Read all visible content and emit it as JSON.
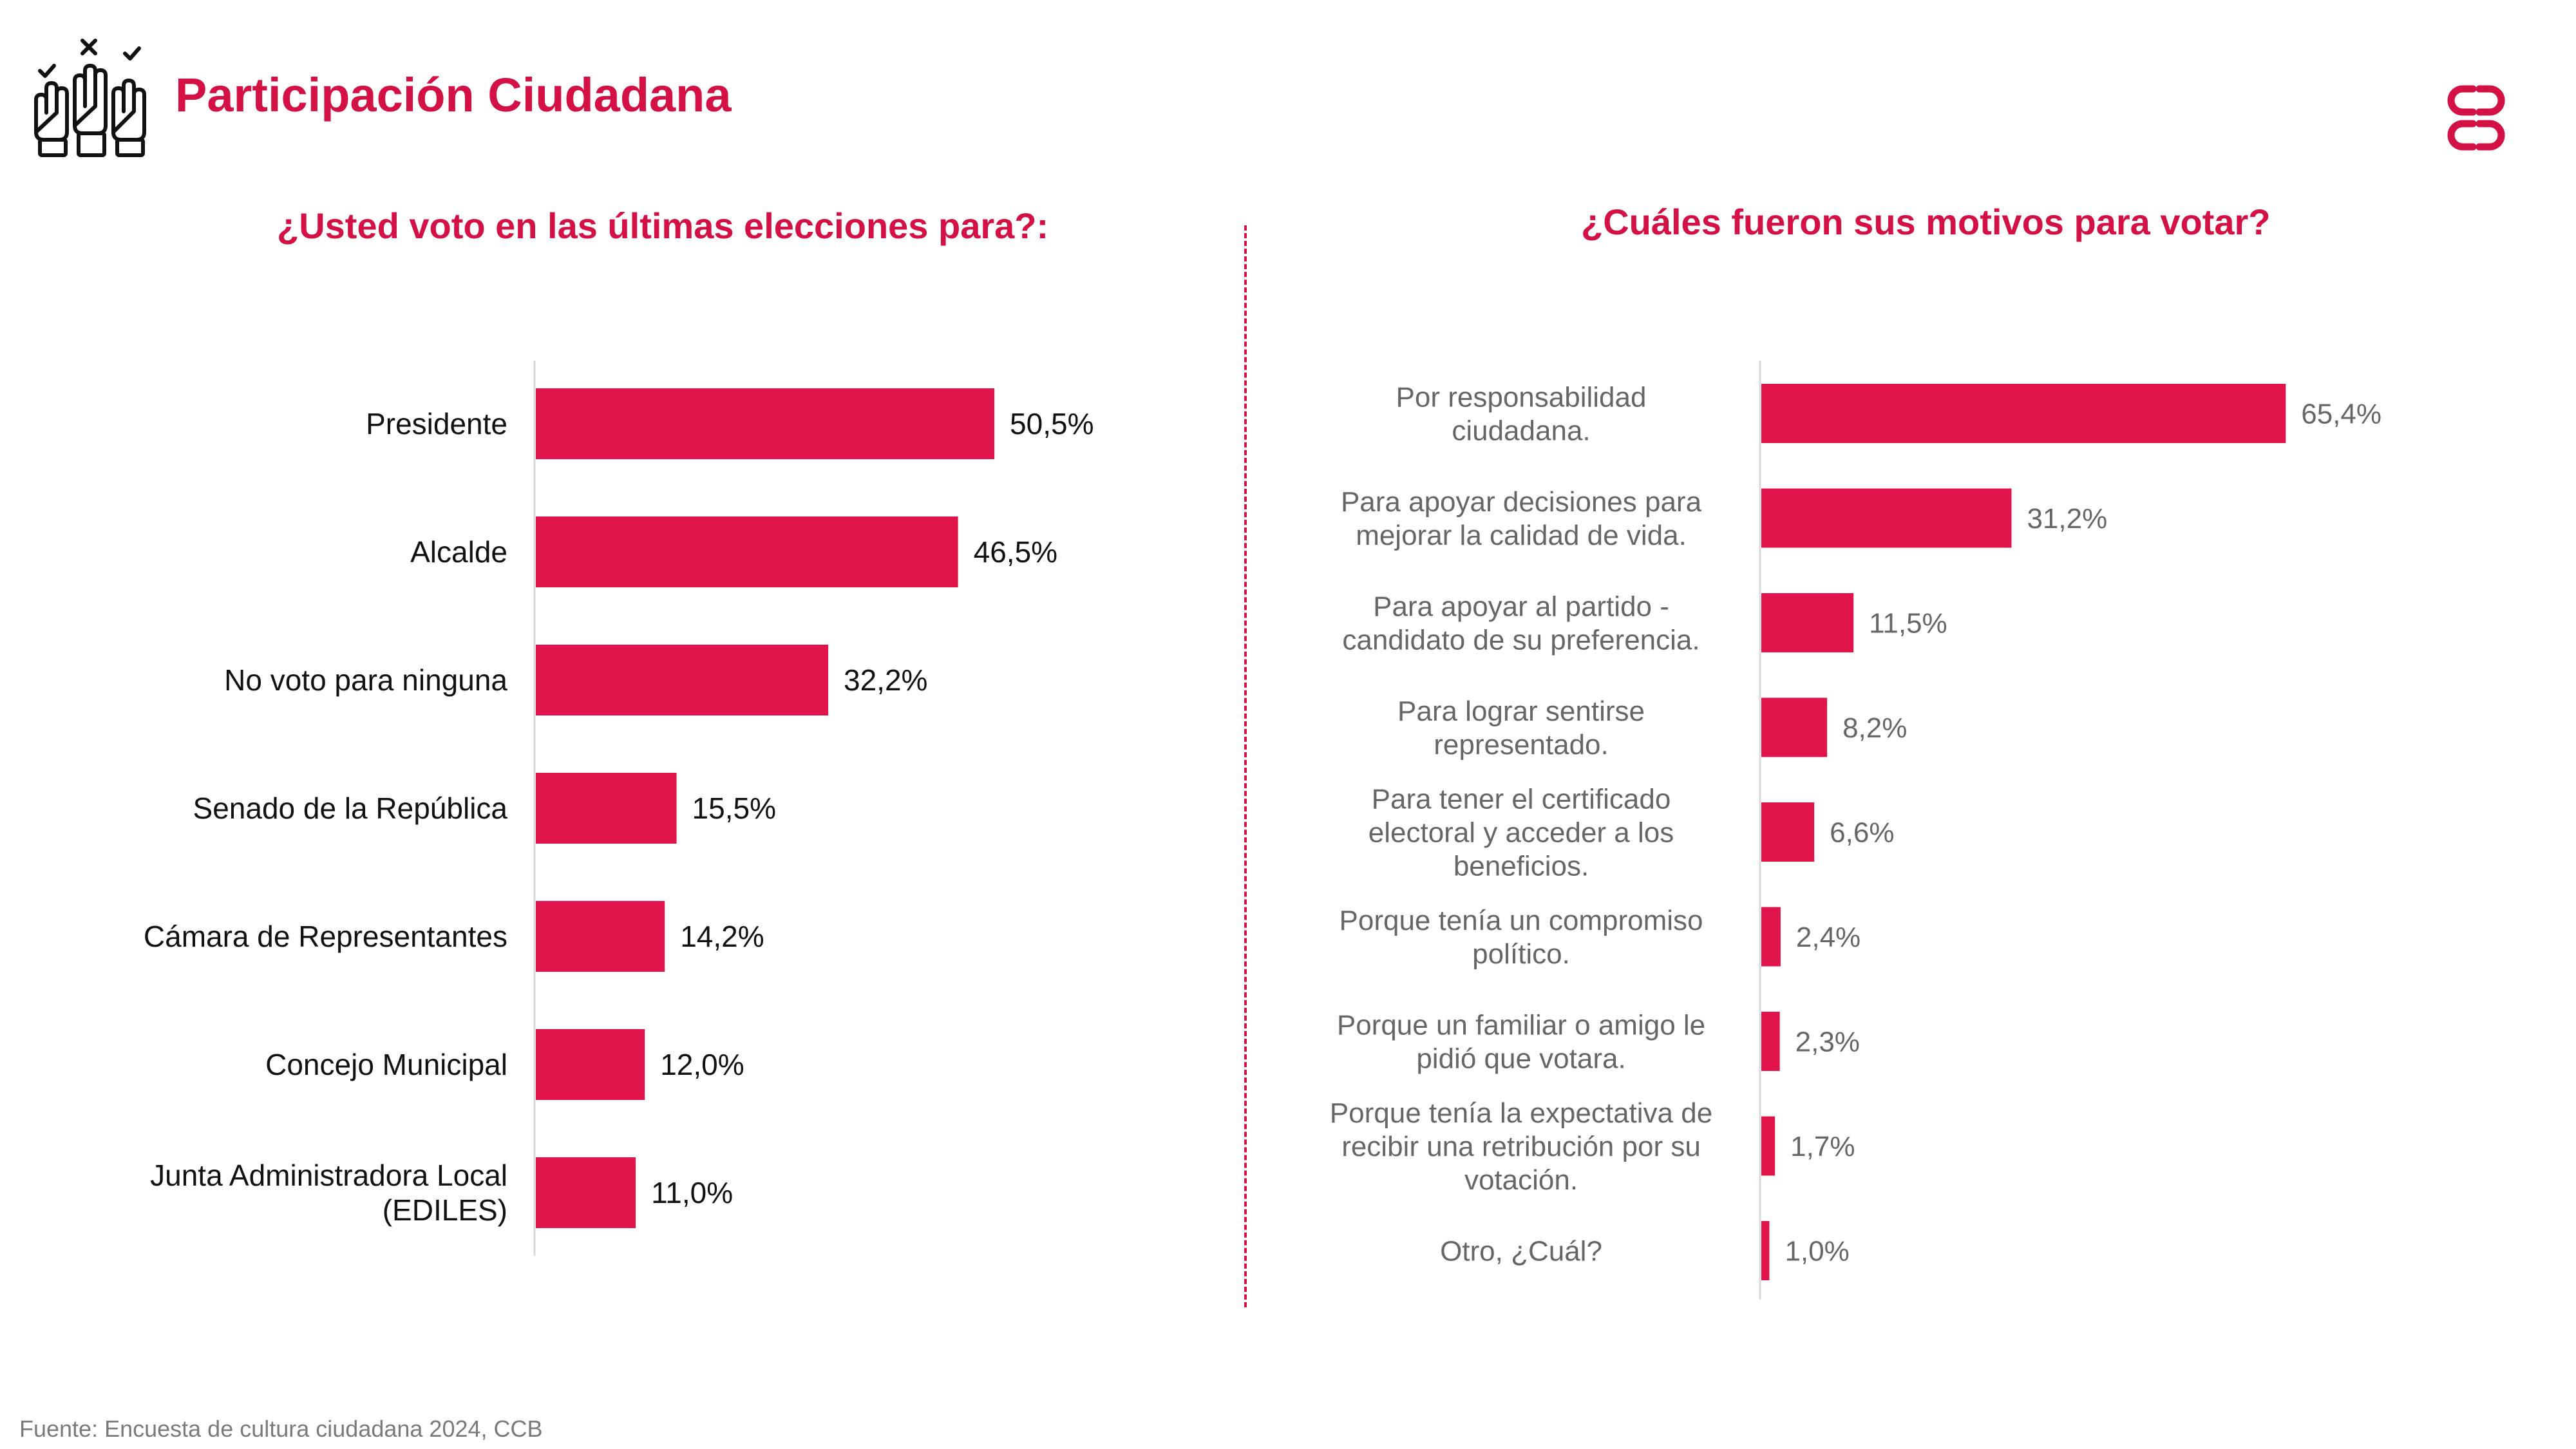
{
  "header": {
    "title": "Participación Ciudadana",
    "icon": "raised-hands-voting-icon",
    "logo": "ccb-logo-icon"
  },
  "colors": {
    "accent": "#e0144a",
    "title": "#d31145",
    "left_text": "#111111",
    "right_text": "#666666"
  },
  "chart_data": [
    {
      "type": "bar",
      "orientation": "horizontal",
      "title": "¿Usted voto en las últimas elecciones para?:",
      "categories": [
        [
          "Presidente"
        ],
        [
          "Alcalde"
        ],
        [
          "No voto para ninguna"
        ],
        [
          "Senado de la República"
        ],
        [
          "Cámara de Representantes"
        ],
        [
          "Concejo Municipal"
        ],
        [
          "Junta Administradora Local",
          "(EDILES)"
        ]
      ],
      "values": [
        50.5,
        46.5,
        32.2,
        15.5,
        14.2,
        12.0,
        11.0
      ],
      "value_labels": [
        "50,5%",
        "46,5%",
        "32,2%",
        "15,5%",
        "14,2%",
        "12,0%",
        "11,0%"
      ],
      "xlim": [
        0,
        100
      ],
      "xlabel": "",
      "ylabel": ""
    },
    {
      "type": "bar",
      "orientation": "horizontal",
      "title": "¿Cuáles fueron sus motivos para votar?",
      "categories": [
        [
          "Por responsabilidad",
          "ciudadana."
        ],
        [
          "Para apoyar decisiones para",
          "mejorar la calidad de vida."
        ],
        [
          "Para apoyar al partido -",
          "candidato de su preferencia."
        ],
        [
          "Para lograr sentirse",
          "representado."
        ],
        [
          "Para tener el certificado",
          "electoral y acceder a los",
          "beneficios."
        ],
        [
          "Porque tenía un compromiso",
          "político."
        ],
        [
          "Porque un familiar o amigo le",
          "pidió que votara."
        ],
        [
          "Porque tenía la expectativa de",
          "recibir una retribución por su",
          "votación."
        ],
        [
          "Otro, ¿Cuál?"
        ]
      ],
      "values": [
        65.4,
        31.2,
        11.5,
        8.2,
        6.6,
        2.4,
        2.3,
        1.7,
        1.0
      ],
      "value_labels": [
        "65,4%",
        "31,2%",
        "11,5%",
        "8,2%",
        "6,6%",
        "2,4%",
        "2,3%",
        "1,7%",
        "1,0%"
      ],
      "xlim": [
        0,
        100
      ],
      "xlabel": "",
      "ylabel": ""
    }
  ],
  "footer": {
    "source": "Fuente: Encuesta de cultura ciudadana 2024, CCB"
  }
}
